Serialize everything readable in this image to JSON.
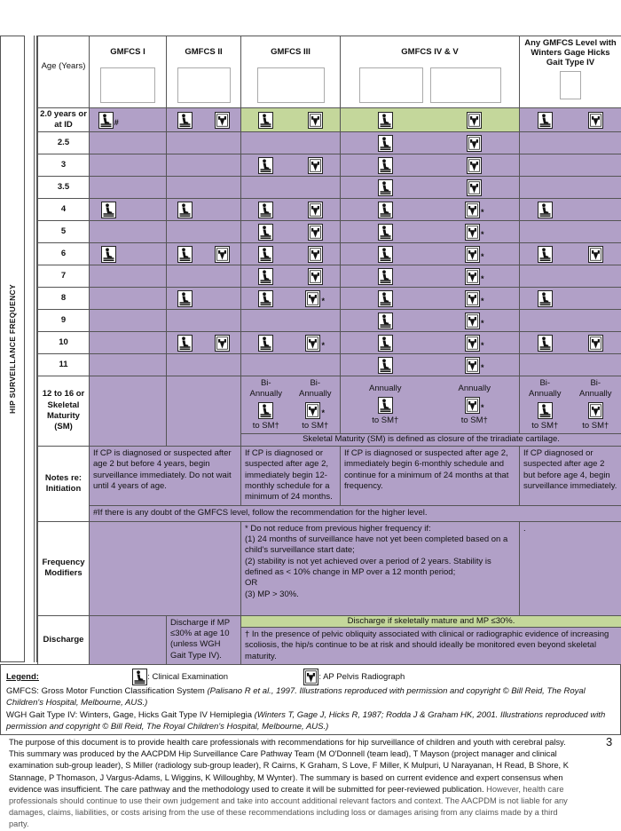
{
  "side_label": "HIP SURVEILLANCE FREQUENCY",
  "colors": {
    "purple": "#b1a0c7",
    "green": "#c4d79b"
  },
  "icons": {
    "C": "clinical-examination-icon",
    "X": "ap-pelvis-radiograph-icon"
  },
  "header": {
    "age": "Age (Years)",
    "columns": [
      "GMFCS I",
      "GMFCS II",
      "GMFCS III",
      "GMFCS IV & V",
      "Any GMFCS Level with Winters Gage Hicks Gait Type IV"
    ]
  },
  "rows": [
    {
      "age": "2.0 years or at ID",
      "green_cols": [
        "GMFCS III",
        "GMFCS IV & V"
      ],
      "cells": [
        "C#",
        "",
        "C",
        "X",
        "C",
        "X",
        "C",
        "X",
        "C",
        "X"
      ]
    },
    {
      "age": "2.5",
      "cells": [
        "",
        "",
        "",
        "",
        "",
        "",
        "C",
        "X",
        "",
        ""
      ]
    },
    {
      "age": "3",
      "cells": [
        "",
        "",
        "",
        "",
        "C",
        "X",
        "C",
        "X",
        "",
        ""
      ]
    },
    {
      "age": "3.5",
      "cells": [
        "",
        "",
        "",
        "",
        "",
        "",
        "C",
        "X",
        "",
        ""
      ]
    },
    {
      "age": "4",
      "cells": [
        "C",
        "",
        "C",
        "",
        "C",
        "X",
        "C",
        "X*",
        "C",
        ""
      ]
    },
    {
      "age": "5",
      "cells": [
        "",
        "",
        "",
        "",
        "C",
        "X",
        "C",
        "X*",
        "",
        ""
      ]
    },
    {
      "age": "6",
      "cells": [
        "C",
        "",
        "C",
        "X",
        "C",
        "X",
        "C",
        "X*",
        "C",
        "X"
      ]
    },
    {
      "age": "7",
      "cells": [
        "",
        "",
        "",
        "",
        "C",
        "X",
        "C",
        "X*",
        "",
        ""
      ]
    },
    {
      "age": "8",
      "cells": [
        "",
        "",
        "C",
        "",
        "C",
        "X*",
        "C",
        "X*",
        "C",
        ""
      ]
    },
    {
      "age": "9",
      "cells": [
        "",
        "",
        "",
        "",
        "",
        "",
        "C",
        "X*",
        "",
        ""
      ]
    },
    {
      "age": "10",
      "cells": [
        "",
        "",
        "C",
        "X",
        "C",
        "X*",
        "C",
        "X*",
        "C",
        "X"
      ]
    },
    {
      "age": "11",
      "cells": [
        "",
        "",
        "",
        "",
        "",
        "",
        "C",
        "X*",
        "",
        ""
      ]
    }
  ],
  "final_row": {
    "age": "12 to 16 or Skeletal Maturity (SM)",
    "cells": [
      {
        "freq": "Bi-Annually",
        "icon": "C",
        "until": "to SM†"
      },
      {
        "freq": "Bi-Annually",
        "icon": "X*",
        "until": "to SM†"
      },
      {
        "freq": "Annually",
        "icon": "C",
        "until": "to SM†"
      },
      {
        "freq": "Annually",
        "icon": "X*",
        "until": "to SM†"
      },
      {
        "freq": "Bi-Annually",
        "icon": "C",
        "until": "to SM†"
      },
      {
        "freq": "Bi-Annually",
        "icon": "X",
        "until": "to SM†"
      }
    ],
    "sm_definition": "Skeletal Maturity (SM) is defined as closure of the triradiate cartilage."
  },
  "notes": {
    "label": "Notes re: Initiation",
    "gmfcs_1_2": "If CP is diagnosed or suspected after age 2 but before 4 years, begin surveillance immediately. Do not wait until 4 years of age.",
    "gmfcs_3": "If CP is diagnosed or suspected after age 2, immediately begin 12-monthly schedule for a minimum of 24 months.",
    "gmfcs_4_5": "If CP is diagnosed or suspected after age 2, immediately begin 6-monthly schedule and continue for a minimum of 24 months at that frequency.",
    "wgh": "If CP diagnosed or suspected after age 2 but before age 4, begin surveillance immediately.",
    "footnote": "#If there is any doubt of the GMFCS level, follow the recommendation for the higher level."
  },
  "modifiers": {
    "label": "Frequency Modifiers",
    "lines": [
      "* Do not reduce from previous higher frequency if:",
      "(1) 24 months of surveillance have not yet been completed based on a child's surveillance start date;",
      "(2) stability is not yet achieved over a period of 2 years. Stability is defined as < 10% change in MP over a 12 month period;",
      "OR",
      "(3) MP > 30%."
    ],
    "wgh": "."
  },
  "discharge": {
    "label": "Discharge",
    "gmfcs_2": "Discharge if MP ≤30% at age 10 (unless WGH Gait Type IV).",
    "general": "Discharge if skeletally mature and MP ≤30%.",
    "dagger": "† In the presence of pelvic obliquity associated with clinical or radiographic evidence of increasing scoliosis, the hip/s continue to be at risk and should ideally be monitored even beyond skeletal maturity."
  },
  "legend": {
    "title": "Legend:",
    "clinical": ": Clinical Examination",
    "radiograph": ": AP Pelvis Radiograph",
    "gmfcs_def": "GMFCS: Gross Motor Function Classification System",
    "gmfcs_cite": "(Palisano R et al., 1997. Illustrations reproduced with permission and copyright © Bill Reid, The Royal Children's Hospital, Melbourne, AUS.)",
    "wgh_def": "WGH Gait Type IV: Winters, Gage, Hicks Gait Type IV Hemiplegia",
    "wgh_cite": "(Winters T, Gage J, Hicks R, 1987; Rodda J & Graham HK, 2001. Illustrations reproduced with permission and copyright © Bill Reid, The Royal Children's Hospital, Melbourne, AUS.)"
  },
  "footer": {
    "text": "The purpose of this document is to provide health care professionals with recommendations for hip surveillance of children and youth with cerebral palsy. This summary was produced by the AACPDM Hip Surveillance Care Pathway Team (M O'Donnell (team lead), T  Mayson (project manager and clinical examination sub-group leader), S Miller (radiology sub-group leader),  R Cairns, K Graham, S Love, F Miller,  K Mulpuri, U Narayanan,  H Read, B Shore, K Stannage, P Thomason, J Vargus-Adams, L Wiggins, K Willoughby, M Wynter). The summary is based on current evidence and expert consensus when evidence was insufficient. The care pathway and the methodology used to create it will be submitted for peer-reviewed publication.",
    "disclaimer": "However, health care professionals should continue to use their own judgement and take into account additional relevant factors and context. The AACPDM is not liable for any damages, claims, liabilities, or costs arising from the use of these recommendations including loss or damages arising from any claims made by a third party.",
    "page_number": "3"
  }
}
